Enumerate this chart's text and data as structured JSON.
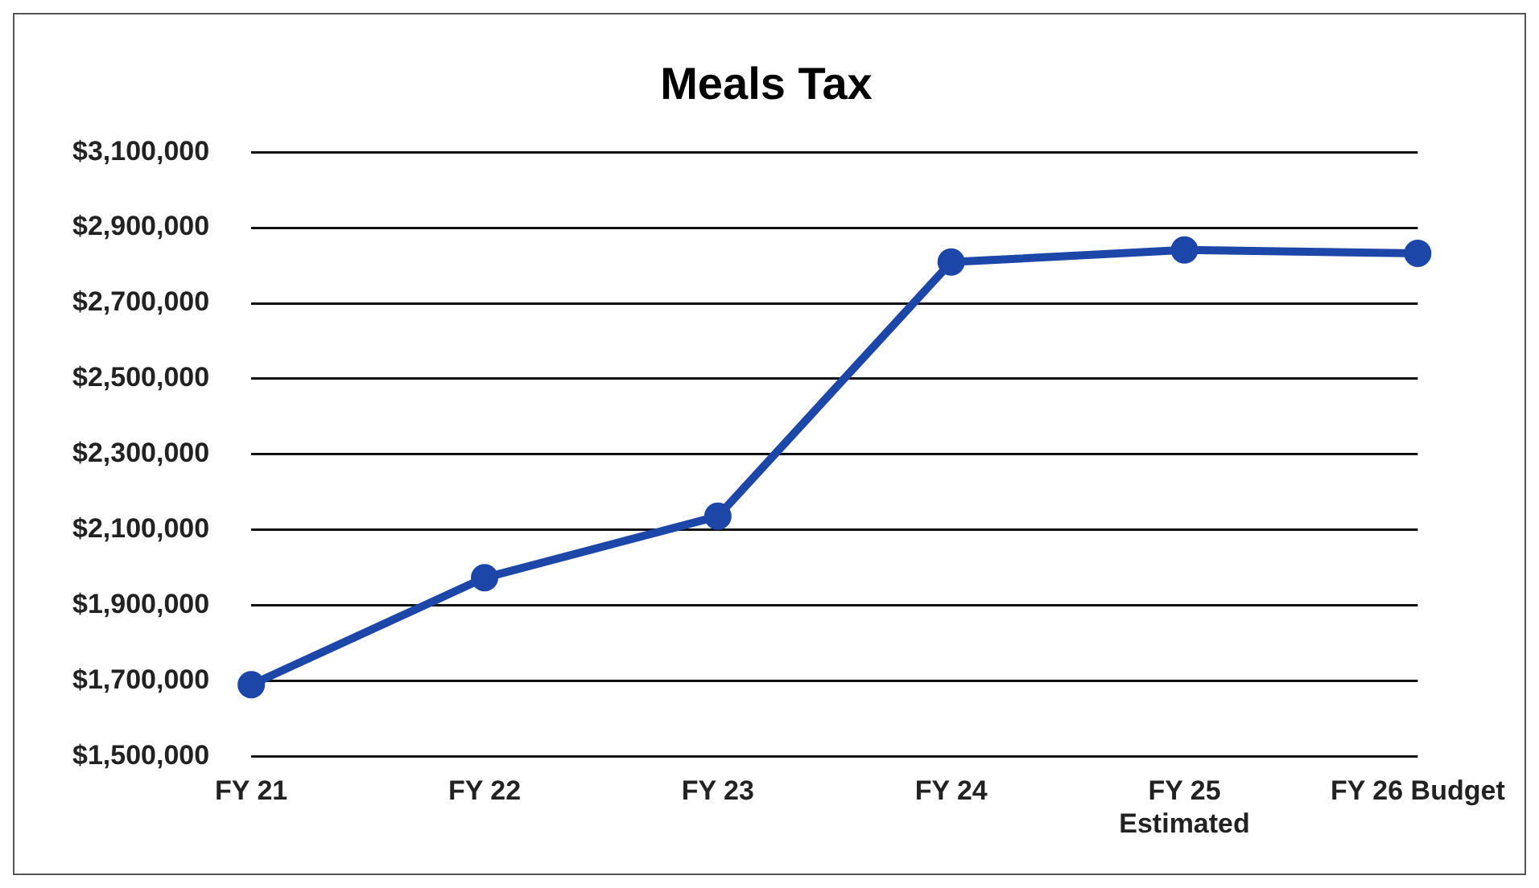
{
  "chart_data": {
    "type": "line",
    "title": "Meals Tax",
    "categories": [
      "FY 21",
      "FY 22",
      "FY 23",
      "FY 24",
      "FY 25\nEstimated",
      "FY 26 Budget"
    ],
    "series": [
      {
        "color": "#1c46a8",
        "values": [
          1690000,
          1973000,
          2136000,
          2809000,
          2841000,
          2832000
        ]
      }
    ],
    "ylim": [
      1500000,
      3100000
    ],
    "yticks": [
      {
        "value": 1500000,
        "label": "$1,500,000"
      },
      {
        "value": 1700000,
        "label": "$1,700,000"
      },
      {
        "value": 1900000,
        "label": "$1,900,000"
      },
      {
        "value": 2100000,
        "label": "$2,100,000"
      },
      {
        "value": 2300000,
        "label": "$2,300,000"
      },
      {
        "value": 2500000,
        "label": "$2,500,000"
      },
      {
        "value": 2700000,
        "label": "$2,700,000"
      },
      {
        "value": 2900000,
        "label": "$2,900,000"
      },
      {
        "value": 3100000,
        "label": "$3,100,000"
      }
    ],
    "grid": "y",
    "legend": false,
    "marker": "circle",
    "line_style": "solid"
  }
}
